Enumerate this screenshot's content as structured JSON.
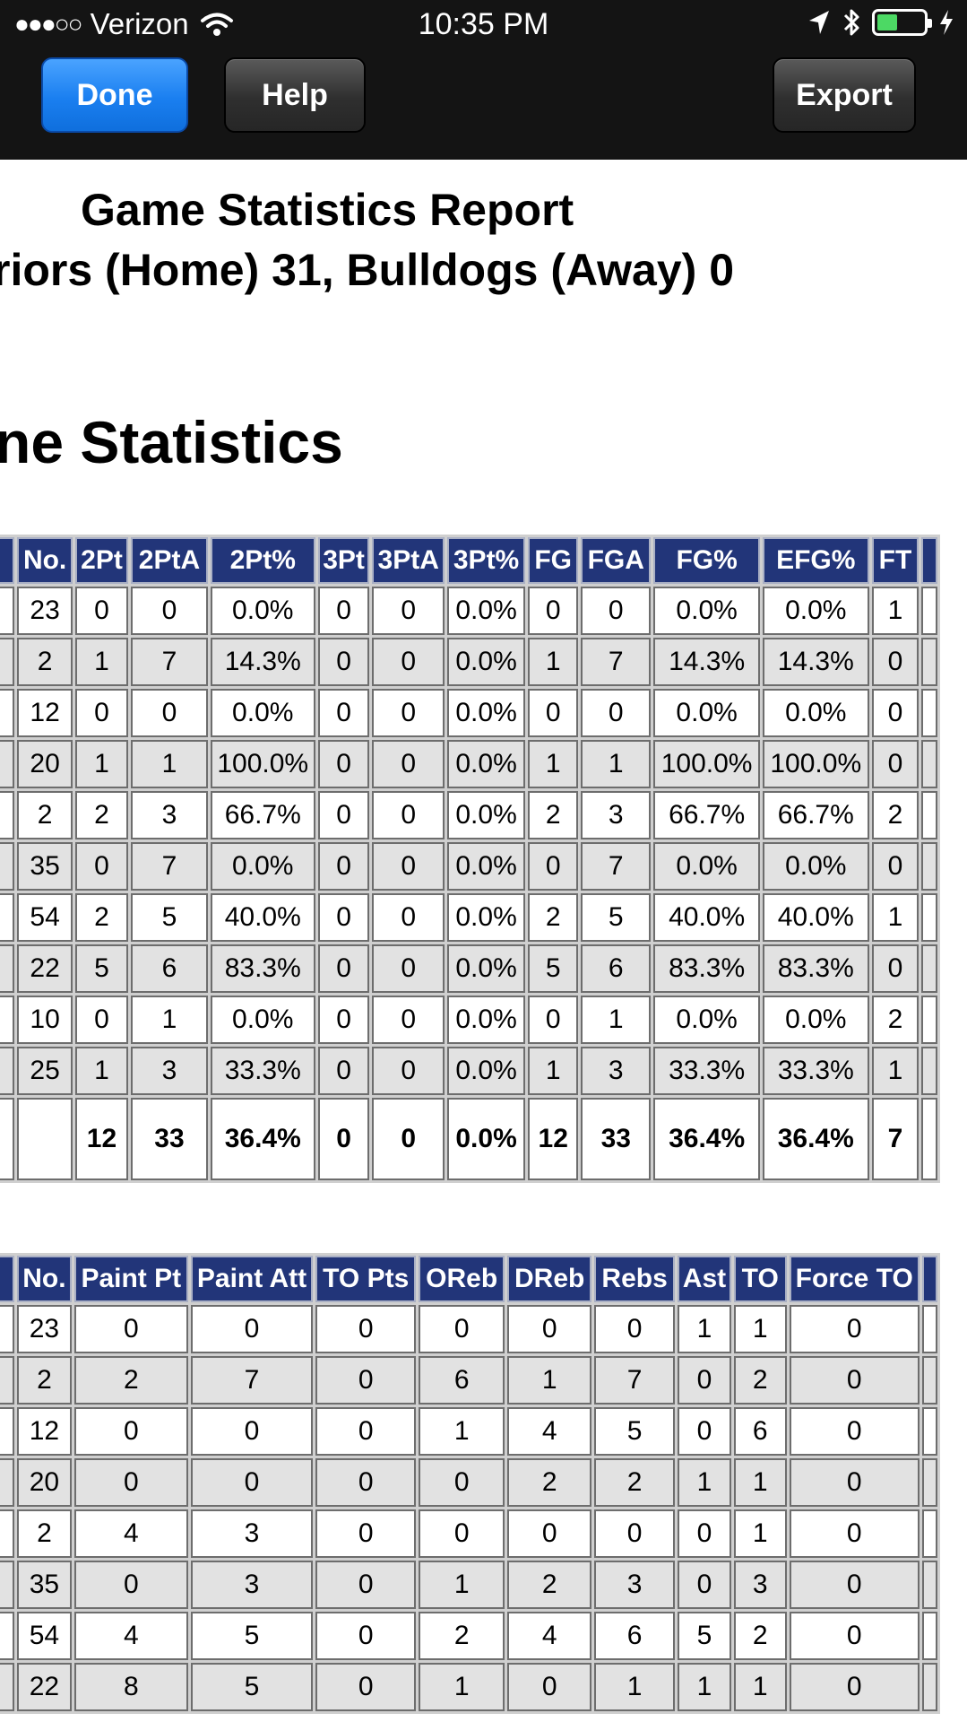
{
  "status_bar": {
    "signal": "●●●○○",
    "carrier": "Verizon",
    "time": "10:35 PM"
  },
  "toolbar": {
    "done_label": "Done",
    "help_label": "Help",
    "export_label": "Export"
  },
  "report": {
    "title": "Game Statistics Report",
    "subtitle": "riors (Home) 31, Bulldogs (Away) 0",
    "section_title": "ne Statistics"
  },
  "colors": {
    "header_bg": "#223579",
    "done_button": "#1a7ff0",
    "battery_fill": "#4cd964"
  },
  "table1": {
    "columns": [
      "No.",
      "2Pt",
      "2PtA",
      "2Pt%",
      "3Pt",
      "3PtA",
      "3Pt%",
      "FG",
      "FGA",
      "FG%",
      "EFG%",
      "FT"
    ],
    "rows": [
      {
        "name": "",
        "cells": [
          "23",
          "0",
          "0",
          "0.0%",
          "0",
          "0",
          "0.0%",
          "0",
          "0",
          "0.0%",
          "0.0%",
          "1"
        ]
      },
      {
        "name": "n",
        "cells": [
          "2",
          "1",
          "7",
          "14.3%",
          "0",
          "0",
          "0.0%",
          "1",
          "7",
          "14.3%",
          "14.3%",
          "0"
        ]
      },
      {
        "name": "",
        "cells": [
          "12",
          "0",
          "0",
          "0.0%",
          "0",
          "0",
          "0.0%",
          "0",
          "0",
          "0.0%",
          "0.0%",
          "0"
        ]
      },
      {
        "name": "",
        "cells": [
          "20",
          "1",
          "1",
          "100.0%",
          "0",
          "0",
          "0.0%",
          "1",
          "1",
          "100.0%",
          "100.0%",
          "0"
        ]
      },
      {
        "name": "",
        "cells": [
          "2",
          "2",
          "3",
          "66.7%",
          "0",
          "0",
          "0.0%",
          "2",
          "3",
          "66.7%",
          "66.7%",
          "2"
        ]
      },
      {
        "name": "",
        "cells": [
          "35",
          "0",
          "7",
          "0.0%",
          "0",
          "0",
          "0.0%",
          "0",
          "7",
          "0.0%",
          "0.0%",
          "0"
        ]
      },
      {
        "name": "",
        "cells": [
          "54",
          "2",
          "5",
          "40.0%",
          "0",
          "0",
          "0.0%",
          "2",
          "5",
          "40.0%",
          "40.0%",
          "1"
        ]
      },
      {
        "name": "n",
        "cells": [
          "22",
          "5",
          "6",
          "83.3%",
          "0",
          "0",
          "0.0%",
          "5",
          "6",
          "83.3%",
          "83.3%",
          "0"
        ]
      },
      {
        "name": "",
        "cells": [
          "10",
          "0",
          "1",
          "0.0%",
          "0",
          "0",
          "0.0%",
          "0",
          "1",
          "0.0%",
          "0.0%",
          "2"
        ]
      },
      {
        "name": "",
        "cells": [
          "25",
          "1",
          "3",
          "33.3%",
          "0",
          "0",
          "0.0%",
          "1",
          "3",
          "33.3%",
          "33.3%",
          "1"
        ]
      }
    ],
    "total": {
      "name": "s",
      "cells": [
        "",
        "12",
        "33",
        "36.4%",
        "0",
        "0",
        "0.0%",
        "12",
        "33",
        "36.4%",
        "36.4%",
        "7"
      ]
    }
  },
  "table2": {
    "columns": [
      "No.",
      "Paint Pt",
      "Paint Att",
      "TO Pts",
      "OReb",
      "DReb",
      "Rebs",
      "Ast",
      "TO",
      "Force TO"
    ],
    "rows": [
      {
        "name": "",
        "cells": [
          "23",
          "0",
          "0",
          "0",
          "0",
          "0",
          "0",
          "1",
          "1",
          "0"
        ]
      },
      {
        "name": "n",
        "cells": [
          "2",
          "2",
          "7",
          "0",
          "6",
          "1",
          "7",
          "0",
          "2",
          "0"
        ]
      },
      {
        "name": "",
        "cells": [
          "12",
          "0",
          "0",
          "0",
          "1",
          "4",
          "5",
          "0",
          "6",
          "0"
        ]
      },
      {
        "name": "",
        "cells": [
          "20",
          "0",
          "0",
          "0",
          "0",
          "2",
          "2",
          "1",
          "1",
          "0"
        ]
      },
      {
        "name": "",
        "cells": [
          "2",
          "4",
          "3",
          "0",
          "0",
          "0",
          "0",
          "0",
          "1",
          "0"
        ]
      },
      {
        "name": "",
        "cells": [
          "35",
          "0",
          "3",
          "0",
          "1",
          "2",
          "3",
          "0",
          "3",
          "0"
        ]
      },
      {
        "name": "",
        "cells": [
          "54",
          "4",
          "5",
          "0",
          "2",
          "4",
          "6",
          "5",
          "2",
          "0"
        ]
      },
      {
        "name": "n",
        "cells": [
          "22",
          "8",
          "5",
          "0",
          "1",
          "0",
          "1",
          "1",
          "1",
          "0"
        ]
      }
    ]
  }
}
